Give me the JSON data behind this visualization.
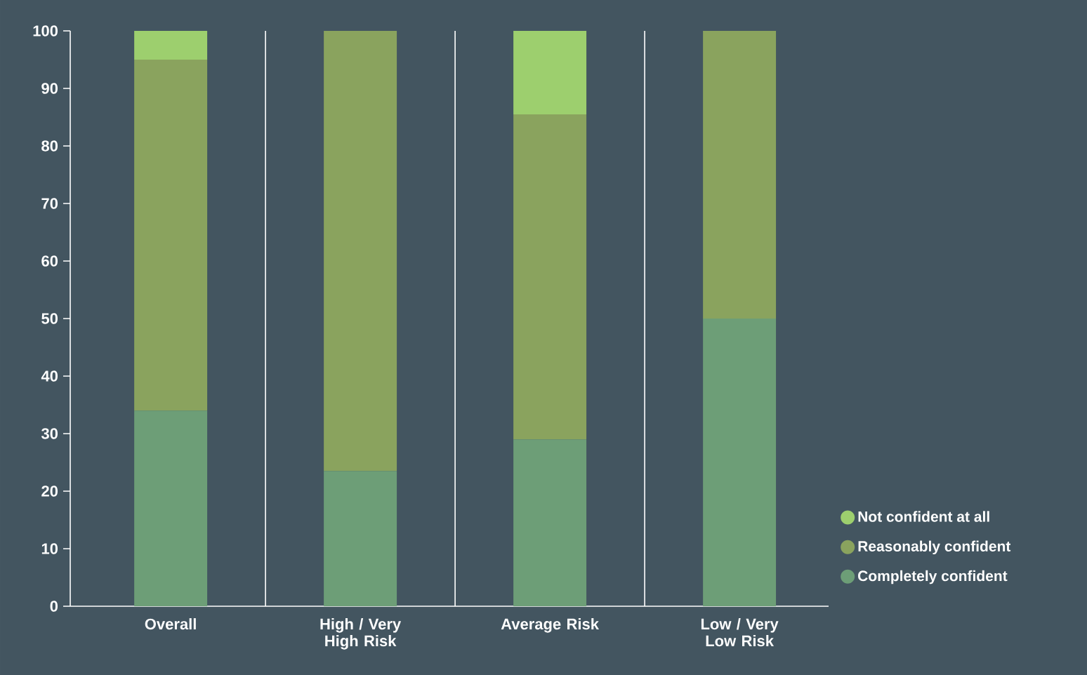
{
  "chart_data": {
    "type": "bar",
    "stacked": true,
    "categories": [
      "Overall",
      "High / Very High Risk",
      "Average Risk",
      "Low / Very Low Risk"
    ],
    "series": [
      {
        "name": "Completely confident",
        "color": "#6d9e77",
        "values": [
          34,
          23.5,
          29,
          50
        ]
      },
      {
        "name": "Reasonably confident",
        "color": "#8aa35e",
        "values": [
          61,
          76.5,
          56.5,
          50
        ]
      },
      {
        "name": "Not confident at all",
        "color": "#9dcf6e",
        "values": [
          5,
          0,
          14.5,
          0
        ]
      }
    ],
    "ylim": [
      0,
      100
    ],
    "yticks": [
      0,
      10,
      20,
      30,
      40,
      50,
      60,
      70,
      80,
      90,
      100
    ],
    "legend": "right",
    "grid": false
  }
}
